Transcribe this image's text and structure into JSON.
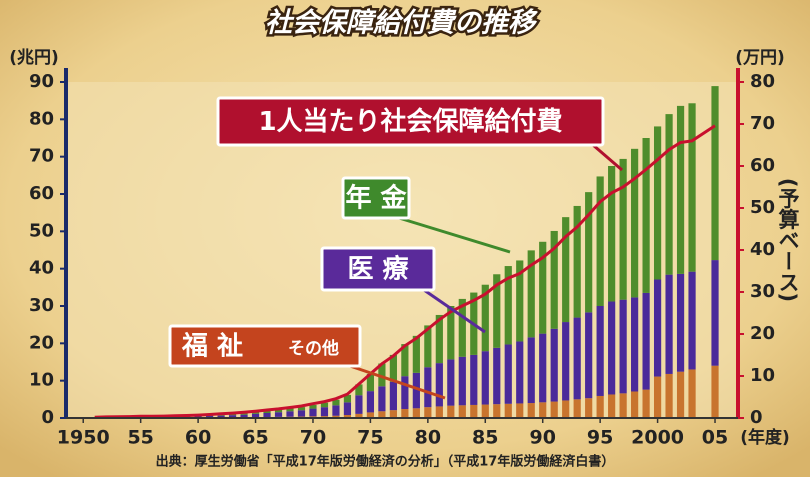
{
  "chart_data": {
    "type": "bar",
    "title": "社会保障給付費の推移",
    "y_label": "(兆円)",
    "y2_label": "(万円)",
    "y2_note": "(予算ベース)",
    "x_unit": "(年度)",
    "source": "出典：厚生労働省「平成17年版労働経済の分析」（平成17年版労働経済白書）",
    "x": [
      1951,
      1952,
      1953,
      1954,
      1955,
      1956,
      1957,
      1958,
      1959,
      1960,
      1961,
      1962,
      1963,
      1964,
      1965,
      1966,
      1967,
      1968,
      1969,
      1970,
      1971,
      1972,
      1973,
      1974,
      1975,
      1976,
      1977,
      1978,
      1979,
      1980,
      1981,
      1982,
      1983,
      1984,
      1985,
      1986,
      1987,
      1988,
      1989,
      1990,
      1991,
      1992,
      1993,
      1994,
      1995,
      1996,
      1997,
      1998,
      1999,
      2000,
      2001,
      2002,
      2003,
      2005
    ],
    "xlim": [
      1948.5,
      2007
    ],
    "xticks": [
      1950,
      {
        "value": 1955,
        "label": "55"
      },
      {
        "value": 1960,
        "label": "60"
      },
      {
        "value": 1965,
        "label": "65"
      },
      {
        "value": 1970,
        "label": "70"
      },
      {
        "value": 1975,
        "label": "75"
      },
      {
        "value": 1980,
        "label": "80"
      },
      {
        "value": 1985,
        "label": "85"
      },
      {
        "value": 1990,
        "label": "90"
      },
      {
        "value": 1995,
        "label": "95"
      },
      2000,
      {
        "value": 2005,
        "label": "05"
      }
    ],
    "ylim": [
      0,
      90
    ],
    "yticks": [
      0,
      10,
      20,
      30,
      40,
      50,
      60,
      70,
      80,
      90
    ],
    "y2lim": [
      0,
      80
    ],
    "y2ticks": [
      0,
      10,
      20,
      30,
      40,
      50,
      60,
      70,
      80
    ],
    "series": [
      {
        "name": "福 祉",
        "name_note": "その他",
        "color": "#c8742e",
        "values": [
          0.05,
          0.07,
          0.08,
          0.09,
          0.1,
          0.1,
          0.1,
          0.11,
          0.12,
          0.13,
          0.14,
          0.16,
          0.18,
          0.2,
          0.24,
          0.27,
          0.3,
          0.34,
          0.38,
          0.45,
          0.5,
          0.6,
          0.8,
          1.1,
          1.5,
          1.8,
          2.1,
          2.4,
          2.6,
          2.9,
          3.1,
          3.3,
          3.4,
          3.5,
          3.6,
          3.7,
          3.8,
          3.9,
          4.0,
          4.2,
          4.4,
          4.7,
          5.0,
          5.3,
          5.9,
          6.3,
          6.6,
          7.1,
          7.6,
          11.1,
          11.8,
          12.4,
          13.0,
          14.0
        ]
      },
      {
        "name": "医 療",
        "color": "#4a2a9a",
        "values": [
          0.06,
          0.08,
          0.1,
          0.12,
          0.17,
          0.17,
          0.19,
          0.22,
          0.26,
          0.31,
          0.39,
          0.47,
          0.58,
          0.7,
          0.9,
          1.07,
          1.25,
          1.47,
          1.7,
          2.07,
          2.4,
          2.8,
          3.4,
          5.0,
          5.7,
          6.7,
          7.6,
          8.8,
          9.5,
          10.7,
          11.6,
          12.4,
          13.0,
          13.4,
          14.3,
          15.1,
          15.9,
          16.6,
          17.6,
          18.4,
          19.5,
          21.0,
          21.9,
          23.0,
          24.1,
          24.9,
          25.1,
          25.2,
          25.9,
          26.0,
          26.6,
          26.2,
          26.2,
          28.3
        ]
      },
      {
        "name": "年 金",
        "color": "#4f8d2c",
        "values": [
          0.05,
          0.07,
          0.08,
          0.09,
          0.12,
          0.12,
          0.13,
          0.15,
          0.17,
          0.21,
          0.26,
          0.31,
          0.36,
          0.43,
          0.46,
          0.55,
          0.62,
          0.73,
          0.84,
          1.0,
          1.2,
          1.5,
          2.0,
          2.9,
          4.6,
          6.1,
          7.2,
          8.6,
          9.9,
          11.2,
          12.9,
          14.3,
          15.5,
          16.7,
          17.8,
          19.7,
          21.0,
          21.7,
          23.3,
          24.6,
          26.2,
          28.1,
          29.9,
          32.2,
          34.7,
          36.3,
          37.7,
          39.8,
          41.5,
          41.0,
          43.0,
          45.0,
          45.1,
          46.6
        ]
      },
      {
        "name": "1人当たり社会保障給付費",
        "type": "line",
        "axis": "y2",
        "color": "#c8102e",
        "values": [
          0.19,
          0.26,
          0.3,
          0.34,
          0.44,
          0.43,
          0.46,
          0.52,
          0.59,
          0.7,
          0.84,
          0.99,
          1.16,
          1.37,
          1.63,
          1.91,
          2.17,
          2.51,
          2.85,
          3.4,
          3.9,
          4.6,
          5.7,
          8.1,
          10.5,
          12.9,
          14.8,
          17.2,
          19.0,
          21.2,
          23.4,
          25.3,
          26.7,
          28.0,
          29.5,
          31.7,
          33.3,
          34.4,
          36.4,
          38.2,
          40.4,
          43.2,
          45.5,
          48.4,
          51.5,
          53.6,
          55.0,
          57.0,
          59.2,
          61.5,
          63.9,
          65.6,
          66.0,
          69.6
        ]
      }
    ]
  }
}
